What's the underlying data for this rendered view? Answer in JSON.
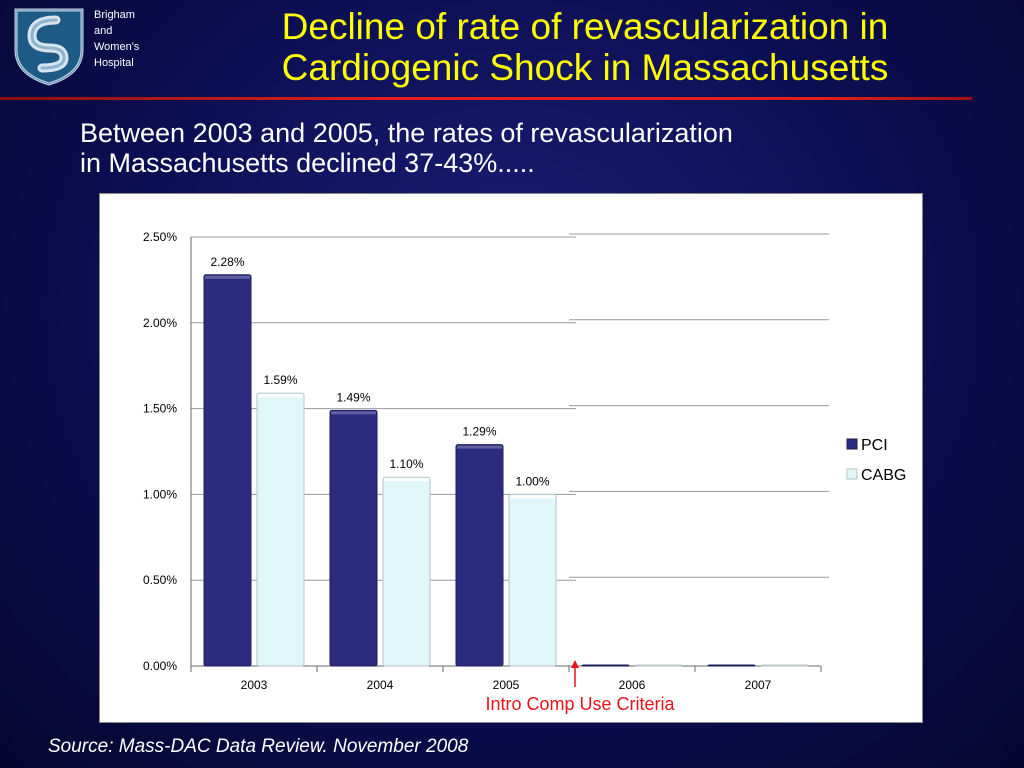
{
  "header": {
    "org_lines": [
      "Brigham",
      "and",
      "Women's",
      "Hospital"
    ],
    "title_lines": [
      "Decline of rate of revascularization in",
      "Cardiogenic Shock in Massachusetts"
    ]
  },
  "subtitle_lines": [
    "Between 2003 and 2005, the rates of revascularization",
    "in Massachusetts declined 37-43%....."
  ],
  "source": "Source:   Mass-DAC Data Review.  November 2008",
  "colors": {
    "pci": "#2b2c80",
    "cabg": "#e0f7fa",
    "annotation": "#e8141a",
    "title": "#ffff00"
  },
  "chart_data": {
    "type": "bar",
    "categories": [
      "2003",
      "2004",
      "2005",
      "2006",
      "2007"
    ],
    "series": [
      {
        "name": "PCI",
        "values": [
          2.28,
          1.49,
          1.29,
          0,
          0
        ],
        "labels": [
          "2.28%",
          "1.49%",
          "1.29%",
          "",
          ""
        ]
      },
      {
        "name": "CABG",
        "values": [
          1.59,
          1.1,
          1.0,
          0,
          0
        ],
        "labels": [
          "1.59%",
          "1.10%",
          "1.00%",
          "",
          ""
        ]
      }
    ],
    "ylim": [
      0,
      2.5
    ],
    "yticks": [
      "0.00%",
      "0.50%",
      "1.00%",
      "1.50%",
      "2.00%",
      "2.50%"
    ],
    "legend_position": "right",
    "annotation": "Intro Comp Use Criteria",
    "grid": true
  }
}
